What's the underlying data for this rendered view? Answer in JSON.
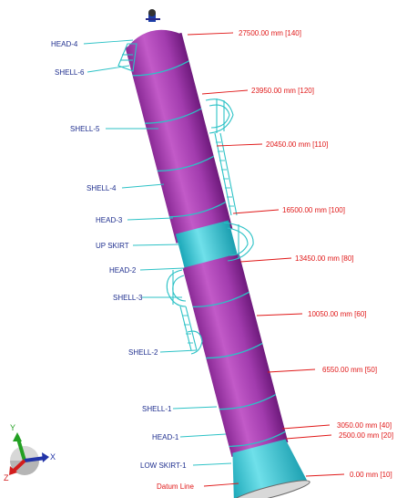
{
  "component_labels": [
    {
      "id": "head4",
      "text": "HEAD-4"
    },
    {
      "id": "shell6",
      "text": "SHELL-6"
    },
    {
      "id": "shell5",
      "text": "SHELL-5"
    },
    {
      "id": "shell4",
      "text": "SHELL-4"
    },
    {
      "id": "head3",
      "text": "HEAD-3"
    },
    {
      "id": "upskirt",
      "text": "UP SKIRT"
    },
    {
      "id": "head2",
      "text": "HEAD-2"
    },
    {
      "id": "shell3",
      "text": "SHELL-3"
    },
    {
      "id": "shell2",
      "text": "SHELL-2"
    },
    {
      "id": "shell1",
      "text": "SHELL-1"
    },
    {
      "id": "head1",
      "text": "HEAD-1"
    },
    {
      "id": "lowskirt1",
      "text": "LOW SKIRT-1"
    },
    {
      "id": "datum",
      "text": "Datum Line"
    }
  ],
  "elevation_labels": [
    {
      "id": "e140",
      "text": "27500.00 mm  [140]"
    },
    {
      "id": "e120",
      "text": "23950.00 mm  [120]"
    },
    {
      "id": "e110",
      "text": "20450.00 mm  [110]"
    },
    {
      "id": "e100",
      "text": "16500.00 mm  [100]"
    },
    {
      "id": "e80",
      "text": "13450.00 mm  [80]"
    },
    {
      "id": "e60",
      "text": "10050.00 mm  [60]"
    },
    {
      "id": "e50",
      "text": "6550.00 mm  [50]"
    },
    {
      "id": "e40",
      "text": "3050.00 mm  [40]"
    },
    {
      "id": "e20",
      "text": "2500.00 mm  [20]"
    },
    {
      "id": "e10",
      "text": "0.00 mm  [10]"
    }
  ],
  "axis_triad": {
    "y": "Y",
    "x": "X",
    "z": "Z"
  },
  "colors": {
    "vessel": "#b040b8",
    "vessel_dark": "#7a1e86",
    "skirt": "#39c6d6",
    "platform": "#2cc2c6",
    "elevation_text": "#e01818",
    "component_text": "#1f2f8f"
  }
}
